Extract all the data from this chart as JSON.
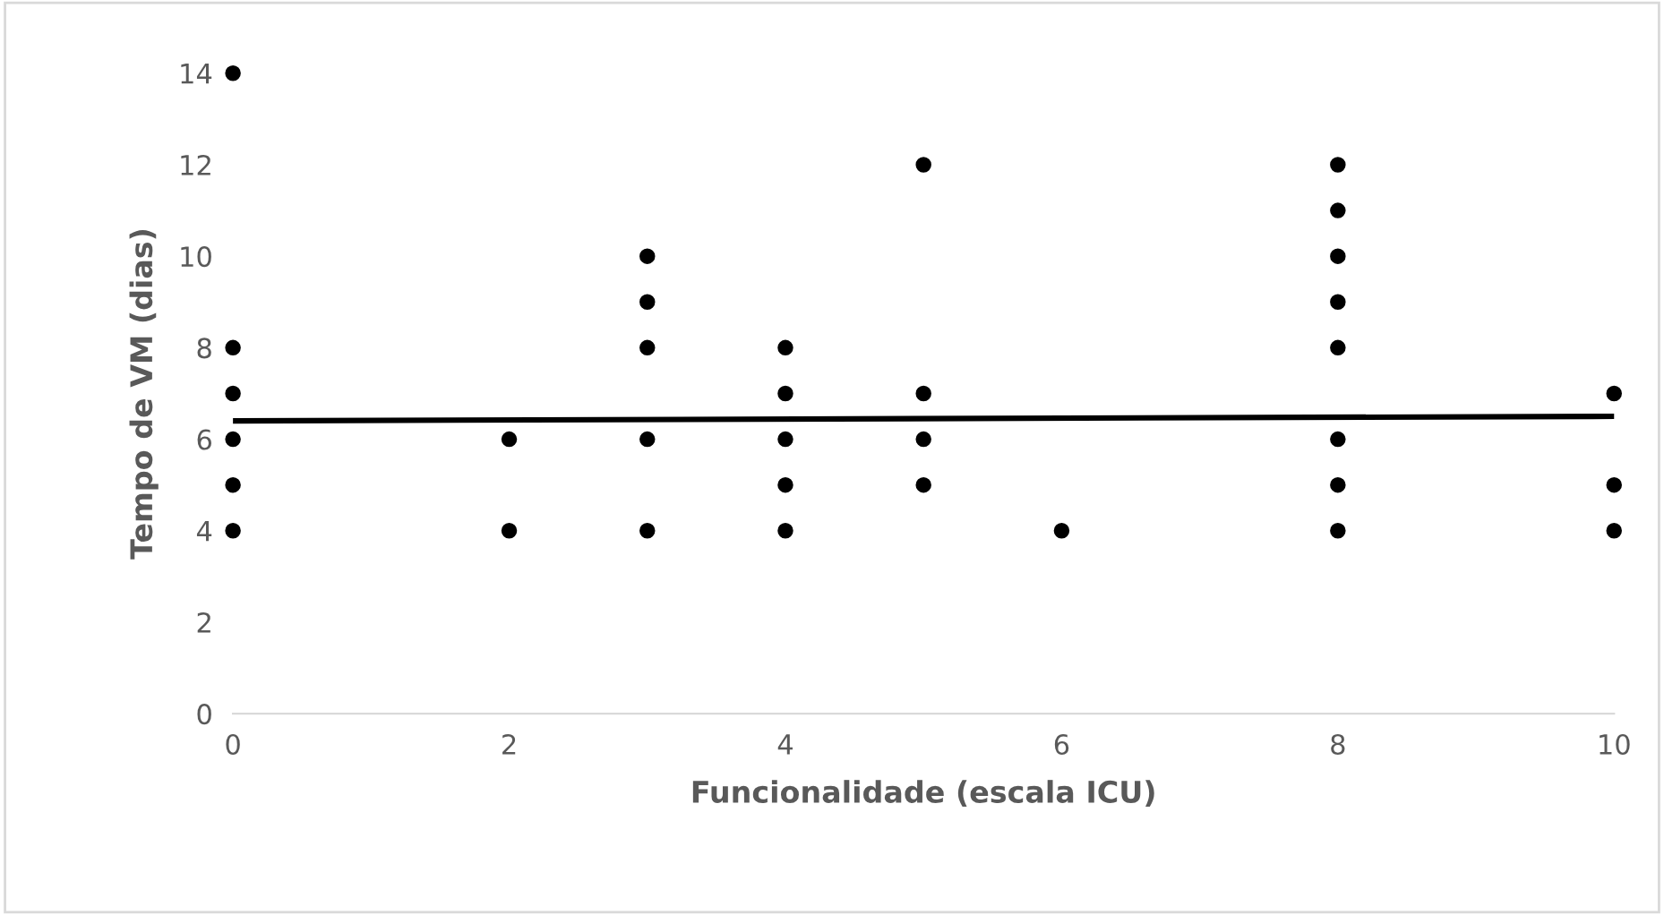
{
  "chart_data": {
    "type": "scatter",
    "xlabel": "Funcionalidade (escala ICU)",
    "ylabel": "Tempo de VM (dias)",
    "xlim": [
      0,
      10
    ],
    "xticks": [
      0,
      2,
      4,
      6,
      8,
      10
    ],
    "ylim": [
      0,
      14
    ],
    "yticks": [
      0,
      2,
      4,
      6,
      8,
      10,
      12,
      14
    ],
    "grid": false,
    "legend": false,
    "series": [
      {
        "marker": "circle",
        "color": "#000000",
        "x": [
          0,
          0,
          0,
          0,
          0,
          0,
          2,
          2,
          3,
          3,
          3,
          3,
          3,
          4,
          4,
          4,
          4,
          4,
          5,
          5,
          5,
          5,
          6,
          8,
          8,
          8,
          8,
          8,
          8,
          8,
          8,
          10,
          10,
          10
        ],
        "values": [
          14,
          8,
          7,
          6,
          5,
          4,
          6,
          4,
          10,
          9,
          8,
          6,
          4,
          8,
          7,
          6,
          5,
          4,
          12,
          7,
          6,
          5,
          4,
          12,
          11,
          10,
          9,
          8,
          6,
          5,
          4,
          7,
          5,
          4
        ]
      },
      {
        "type": "line",
        "color": "#000000",
        "x": [
          0,
          10
        ],
        "values": [
          6.4,
          6.5
        ]
      }
    ]
  }
}
